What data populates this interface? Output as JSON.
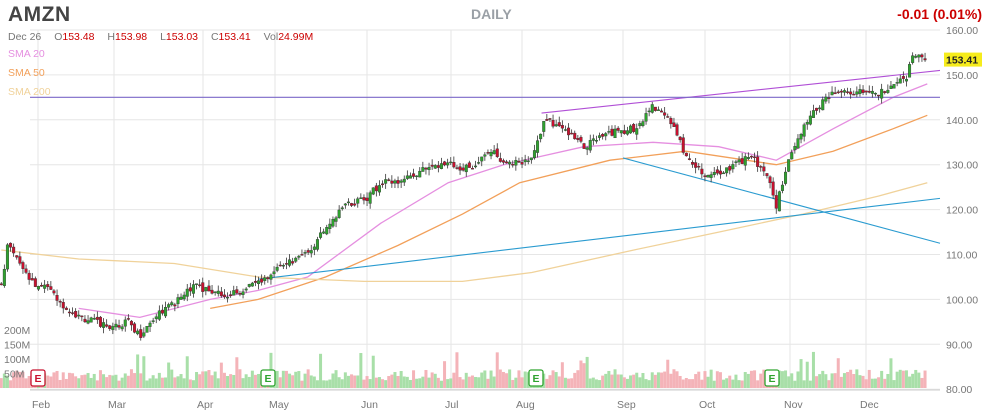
{
  "header": {
    "ticker": "AMZN",
    "period": "DAILY",
    "change": "-0.01 (0.01%)",
    "date": "Dec 26",
    "open_label": "O",
    "open": "153.48",
    "high_label": "H",
    "high": "153.98",
    "low_label": "L",
    "low": "153.03",
    "close_label": "C",
    "close": "153.41",
    "vol_label": "Vol",
    "volume": "24.99M"
  },
  "colors": {
    "up": "#2ea32e",
    "down": "#c8102e",
    "vol_up": "#a8dfa8",
    "vol_down": "#f4b3b8",
    "sma20": "#e58fe0",
    "sma50": "#f2a05a",
    "sma200": "#f0d29a",
    "resistance": "#b04fd6",
    "support": "#2a9bd0",
    "horizontal": "#7b68c8",
    "price_tag": "#f6ec1c",
    "grid": "#e6e6e6",
    "axis_text": "#777777"
  },
  "chart_data": {
    "type": "candlestick",
    "title": "AMZN",
    "period": "DAILY",
    "x_labels": [
      "Feb",
      "Mar",
      "Apr",
      "May",
      "Jun",
      "Jul",
      "Aug",
      "Sep",
      "Oct",
      "Nov",
      "Dec"
    ],
    "y_ticks": [
      "160.00",
      "150.00",
      "140.00",
      "130.00",
      "120.00",
      "110.00",
      "100.00",
      "90.00",
      "80.00"
    ],
    "ylim": [
      80,
      160
    ],
    "volume_ticks": [
      "200M",
      "150M",
      "100M",
      "50M"
    ],
    "volume_max": 200,
    "last_price": "153.41",
    "earnings_markers": [
      {
        "month": "Feb",
        "label": "E",
        "color": "#c8102e"
      },
      {
        "month": "May",
        "label": "E",
        "color": "#2ea32e"
      },
      {
        "month": "Aug",
        "label": "E",
        "color": "#2ea32e"
      },
      {
        "month": "Nov",
        "label": "E",
        "color": "#2ea32e"
      }
    ],
    "sma_legend": [
      {
        "name": "SMA 20",
        "color": "#e58fe0"
      },
      {
        "name": "SMA 50",
        "color": "#f2a05a"
      },
      {
        "name": "SMA 200",
        "color": "#f0d29a"
      }
    ],
    "trendlines": [
      {
        "name": "resistance",
        "start": [
          "Aug 7",
          141.5
        ],
        "end": [
          "Dec 26",
          151
        ]
      },
      {
        "name": "upper-support",
        "start": [
          "Sep 1",
          131.5
        ],
        "end": [
          "Dec 26",
          112.5
        ]
      },
      {
        "name": "lower-support",
        "start": [
          "Apr 24",
          104.5
        ],
        "end": [
          "Dec 26",
          122.5
        ]
      },
      {
        "name": "horizontal",
        "start": [
          "Jan 17",
          145
        ],
        "end": [
          "Dec 26",
          145
        ]
      }
    ],
    "close_series": [
      [
        "Jan 17",
        103
      ],
      [
        "Jan 20",
        113
      ],
      [
        "Jan 24",
        108
      ],
      [
        "Jan 31",
        103
      ],
      [
        "Feb 6",
        102
      ],
      [
        "Feb 10",
        99
      ],
      [
        "Feb 16",
        96
      ],
      [
        "Feb 22",
        95
      ],
      [
        "Feb 28",
        94
      ],
      [
        "Mar 6",
        95
      ],
      [
        "Mar 10",
        92
      ],
      [
        "Mar 16",
        97
      ],
      [
        "Mar 22",
        99
      ],
      [
        "Mar 29",
        103
      ],
      [
        "Apr 4",
        102
      ],
      [
        "Apr 10",
        101
      ],
      [
        "Apr 18",
        102
      ],
      [
        "Apr 24",
        104
      ],
      [
        "Apr 28",
        105
      ],
      [
        "May 4",
        108
      ],
      [
        "May 12",
        110
      ],
      [
        "May 18",
        116
      ],
      [
        "May 24",
        121
      ],
      [
        "May 31",
        122
      ],
      [
        "Jun 6",
        126
      ],
      [
        "Jun 12",
        126
      ],
      [
        "Jun 18",
        128
      ],
      [
        "Jun 24",
        130
      ],
      [
        "Jun 30",
        130
      ],
      [
        "Jul 6",
        129
      ],
      [
        "Jul 12",
        130
      ],
      [
        "Jul 18",
        133
      ],
      [
        "Jul 24",
        131
      ],
      [
        "Jul 31",
        130
      ],
      [
        "Aug 4",
        132
      ],
      [
        "Aug 8",
        140
      ],
      [
        "Aug 14",
        138
      ],
      [
        "Aug 20",
        134
      ],
      [
        "Aug 28",
        137
      ],
      [
        "Sep 5",
        138
      ],
      [
        "Sep 12",
        143
      ],
      [
        "Sep 18",
        140
      ],
      [
        "Sep 24",
        132
      ],
      [
        "Sep 30",
        128
      ],
      [
        "Oct 6",
        128
      ],
      [
        "Oct 12",
        130
      ],
      [
        "Oct 18",
        132
      ],
      [
        "Oct 24",
        127
      ],
      [
        "Oct 27",
        121
      ],
      [
        "Oct 31",
        130
      ],
      [
        "Nov 6",
        138
      ],
      [
        "Nov 12",
        143
      ],
      [
        "Nov 18",
        146
      ],
      [
        "Nov 24",
        146
      ],
      [
        "Nov 30",
        146
      ],
      [
        "Dec 6",
        146
      ],
      [
        "Dec 12",
        147
      ],
      [
        "Dec 18",
        150
      ],
      [
        "Dec 20",
        155
      ],
      [
        "Dec 26",
        153.41
      ]
    ],
    "sma20": [
      [
        "Feb 16",
        98
      ],
      [
        "Mar 10",
        96
      ],
      [
        "Apr 4",
        100
      ],
      [
        "Apr 24",
        102
      ],
      [
        "May 12",
        105
      ],
      [
        "Jun 6",
        117
      ],
      [
        "Jun 30",
        126
      ],
      [
        "Jul 24",
        130
      ],
      [
        "Aug 20",
        134
      ],
      [
        "Sep 12",
        135
      ],
      [
        "Oct 6",
        134
      ],
      [
        "Oct 27",
        131
      ],
      [
        "Nov 18",
        138
      ],
      [
        "Dec 12",
        145
      ],
      [
        "Dec 26",
        148
      ]
    ],
    "sma50": [
      [
        "Apr 4",
        98
      ],
      [
        "Apr 24",
        100
      ],
      [
        "May 18",
        105
      ],
      [
        "Jun 12",
        112
      ],
      [
        "Jul 6",
        119
      ],
      [
        "Jul 31",
        126
      ],
      [
        "Aug 28",
        131
      ],
      [
        "Sep 24",
        133
      ],
      [
        "Oct 27",
        130
      ],
      [
        "Nov 18",
        133
      ],
      [
        "Dec 12",
        138
      ],
      [
        "Dec 26",
        141
      ]
    ],
    "sma200": [
      [
        "Jan 17",
        111
      ],
      [
        "Feb 16",
        109
      ],
      [
        "Mar 22",
        108
      ],
      [
        "Apr 24",
        105
      ],
      [
        "May 31",
        104
      ],
      [
        "Jul 6",
        104
      ],
      [
        "Aug 4",
        106
      ],
      [
        "Sep 5",
        111
      ],
      [
        "Oct 6",
        115
      ],
      [
        "Nov 6",
        119
      ],
      [
        "Dec 6",
        123
      ],
      [
        "Dec 26",
        126
      ]
    ]
  }
}
